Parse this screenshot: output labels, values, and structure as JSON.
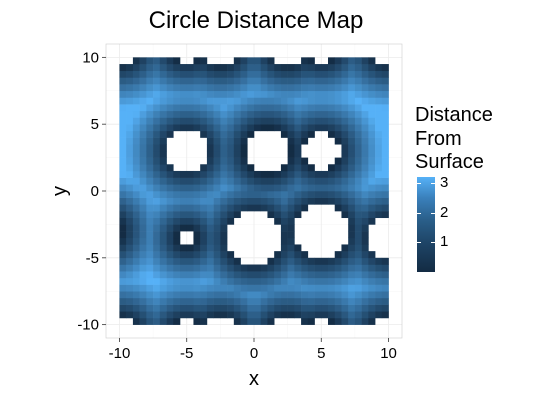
{
  "chart_data": {
    "type": "heatmap",
    "title": "Circle Distance Map",
    "xlabel": "x",
    "ylabel": "y",
    "xlim": [
      -11,
      11
    ],
    "ylim": [
      -11,
      11
    ],
    "x_ticks": [
      -10,
      -5,
      0,
      5,
      10
    ],
    "y_ticks": [
      -10,
      -5,
      0,
      5,
      10
    ],
    "tick_labels": {
      "x": [
        "-10",
        "-5",
        "0",
        "5",
        "10"
      ],
      "y": [
        "-10",
        "-5",
        "0",
        "5",
        "10"
      ]
    },
    "grid": true,
    "grid_domain": {
      "x": [
        -10,
        10
      ],
      "y": [
        -10,
        10
      ]
    },
    "z_range": [
      0,
      3.2
    ],
    "legend": {
      "title_lines": [
        "Distance",
        "From",
        "Surface"
      ],
      "position": "right",
      "breaks": [
        1,
        2,
        3
      ],
      "labels": [
        "1",
        "2",
        "3"
      ],
      "low_color": "#132b43",
      "high_color": "#56b1f7"
    },
    "circles": [
      {
        "x": -5,
        "y": 3,
        "r": 1.5
      },
      {
        "x": 1,
        "y": 3,
        "r": 1.75
      },
      {
        "x": 5,
        "y": 3,
        "r": 1.4
      },
      {
        "x": -5,
        "y": -3.5,
        "r": 0.75
      },
      {
        "x": 0,
        "y": -3.5,
        "r": 2.0
      },
      {
        "x": 5,
        "y": -3,
        "r": 2.0
      },
      {
        "x": 10,
        "y": -3.5,
        "r": 1.5
      },
      {
        "x": -11,
        "y": -3,
        "r": 1.25
      },
      {
        "x": -10,
        "y": 11,
        "r": 1.6
      },
      {
        "x": -2.5,
        "y": 11,
        "r": 1.6
      },
      {
        "x": 2.5,
        "y": 11,
        "r": 1.6
      },
      {
        "x": 10,
        "y": 11,
        "r": 1.6
      },
      {
        "x": -10,
        "y": -11,
        "r": 1.6
      },
      {
        "x": -2.5,
        "y": -11,
        "r": 1.6
      },
      {
        "x": 2.5,
        "y": -11,
        "r": 1.6
      },
      {
        "x": 10,
        "y": -11,
        "r": 1.6
      },
      {
        "x": -5,
        "y": -11,
        "r": 1.4
      },
      {
        "x": 5,
        "y": -11,
        "r": 1.4
      },
      {
        "x": -5,
        "y": 11,
        "r": 1.4
      },
      {
        "x": 5,
        "y": 11,
        "r": 1.4
      }
    ],
    "colors": {
      "panel_background": "#ffffff",
      "grid_major": "#ebebeb",
      "grid_minor": "#f5f5f5",
      "panel_border": "#cccccc"
    }
  }
}
